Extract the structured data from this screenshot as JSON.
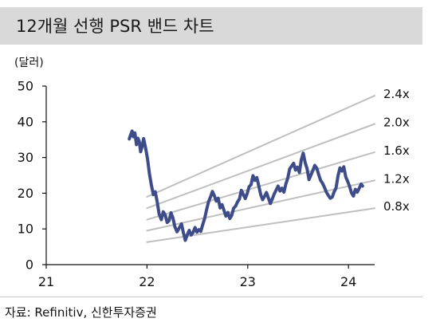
{
  "colors": {
    "title_bar": "#d9d9d9",
    "axis": "#111111",
    "price_line": "#3e4c8a",
    "band_line": "#bfbfbf"
  },
  "source": "자료: Refinitiv, 신한투자증권",
  "chart_data": {
    "type": "line",
    "title": "12개월 선행 PSR 밴드 차트",
    "ylabel": "(달러)",
    "xlim": [
      "2021-01-01",
      "2024-04-05"
    ],
    "ylim": [
      0,
      50
    ],
    "x_ticks": [
      {
        "at": "2021-01-01",
        "label": "21"
      },
      {
        "at": "2022-01-01",
        "label": "22"
      },
      {
        "at": "2023-01-01",
        "label": "23"
      },
      {
        "at": "2024-01-01",
        "label": "24"
      }
    ],
    "y_ticks": [
      0,
      10,
      20,
      30,
      40,
      50
    ],
    "grid": false,
    "legend": "right",
    "series": [
      {
        "name": "2.4x",
        "color": "#bfbfbf",
        "points": [
          [
            "2022-01-01",
            19.0
          ],
          [
            "2024-04-05",
            47.3
          ]
        ]
      },
      {
        "name": "2.0x",
        "color": "#bfbfbf",
        "points": [
          [
            "2022-01-01",
            15.8
          ],
          [
            "2024-04-05",
            39.4
          ]
        ]
      },
      {
        "name": "1.6x",
        "color": "#bfbfbf",
        "points": [
          [
            "2022-01-01",
            12.6
          ],
          [
            "2024-04-05",
            31.5
          ]
        ]
      },
      {
        "name": "1.2x",
        "color": "#bfbfbf",
        "points": [
          [
            "2022-01-01",
            9.5
          ],
          [
            "2024-04-05",
            23.6
          ]
        ]
      },
      {
        "name": "0.8x",
        "color": "#bfbfbf",
        "points": [
          [
            "2022-01-01",
            6.3
          ],
          [
            "2024-04-05",
            15.8
          ]
        ]
      },
      {
        "color": "#3e4c8a",
        "points": [
          [
            "2021-10-29",
            35.2
          ],
          [
            "2021-11-03",
            36.4
          ],
          [
            "2021-11-08",
            37.4
          ],
          [
            "2021-11-13",
            35.8
          ],
          [
            "2021-11-18",
            36.9
          ],
          [
            "2021-11-24",
            33.6
          ],
          [
            "2021-11-29",
            35.4
          ],
          [
            "2021-12-04",
            34.5
          ],
          [
            "2021-12-09",
            31.6
          ],
          [
            "2021-12-14",
            33.0
          ],
          [
            "2021-12-20",
            35.3
          ],
          [
            "2021-12-27",
            32.6
          ],
          [
            "2022-01-03",
            29.6
          ],
          [
            "2022-01-10",
            25.4
          ],
          [
            "2022-01-17",
            22.3
          ],
          [
            "2022-01-24",
            19.6
          ],
          [
            "2022-01-31",
            20.4
          ],
          [
            "2022-02-07",
            17.6
          ],
          [
            "2022-02-14",
            14.2
          ],
          [
            "2022-02-22",
            12.6
          ],
          [
            "2022-03-01",
            14.8
          ],
          [
            "2022-03-08",
            13.9
          ],
          [
            "2022-03-15",
            11.8
          ],
          [
            "2022-03-22",
            12.3
          ],
          [
            "2022-03-29",
            14.5
          ],
          [
            "2022-04-05",
            13.1
          ],
          [
            "2022-04-12",
            10.6
          ],
          [
            "2022-04-20",
            9.2
          ],
          [
            "2022-04-28",
            10.3
          ],
          [
            "2022-05-06",
            11.4
          ],
          [
            "2022-05-13",
            8.9
          ],
          [
            "2022-05-20",
            6.8
          ],
          [
            "2022-05-27",
            8.4
          ],
          [
            "2022-06-03",
            9.6
          ],
          [
            "2022-06-10",
            8.3
          ],
          [
            "2022-06-17",
            9.0
          ],
          [
            "2022-06-24",
            10.4
          ],
          [
            "2022-07-01",
            9.1
          ],
          [
            "2022-07-08",
            9.8
          ],
          [
            "2022-07-15",
            9.3
          ],
          [
            "2022-07-22",
            11.2
          ],
          [
            "2022-07-29",
            13.0
          ],
          [
            "2022-08-05",
            15.4
          ],
          [
            "2022-08-12",
            17.6
          ],
          [
            "2022-08-19",
            18.9
          ],
          [
            "2022-08-26",
            20.5
          ],
          [
            "2022-09-02",
            19.3
          ],
          [
            "2022-09-09",
            17.8
          ],
          [
            "2022-09-16",
            18.6
          ],
          [
            "2022-09-23",
            15.9
          ],
          [
            "2022-09-30",
            16.8
          ],
          [
            "2022-10-07",
            15.2
          ],
          [
            "2022-10-14",
            13.6
          ],
          [
            "2022-10-21",
            14.6
          ],
          [
            "2022-10-28",
            12.9
          ],
          [
            "2022-11-04",
            13.8
          ],
          [
            "2022-11-11",
            15.8
          ],
          [
            "2022-11-18",
            16.4
          ],
          [
            "2022-11-25",
            17.6
          ],
          [
            "2022-12-02",
            18.4
          ],
          [
            "2022-12-09",
            20.8
          ],
          [
            "2022-12-16",
            19.6
          ],
          [
            "2022-12-23",
            18.5
          ],
          [
            "2022-12-30",
            19.9
          ],
          [
            "2023-01-06",
            21.8
          ],
          [
            "2023-01-13",
            22.4
          ],
          [
            "2023-01-20",
            24.9
          ],
          [
            "2023-01-27",
            23.6
          ],
          [
            "2023-02-03",
            24.4
          ],
          [
            "2023-02-10",
            22.1
          ],
          [
            "2023-02-17",
            19.6
          ],
          [
            "2023-02-24",
            18.2
          ],
          [
            "2023-03-03",
            19.1
          ],
          [
            "2023-03-10",
            20.2
          ],
          [
            "2023-03-17",
            18.6
          ],
          [
            "2023-03-24",
            17.1
          ],
          [
            "2023-03-31",
            18.4
          ],
          [
            "2023-04-07",
            19.8
          ],
          [
            "2023-04-14",
            20.9
          ],
          [
            "2023-04-21",
            22.0
          ],
          [
            "2023-04-28",
            20.6
          ],
          [
            "2023-05-05",
            21.4
          ],
          [
            "2023-05-12",
            20.3
          ],
          [
            "2023-05-19",
            22.6
          ],
          [
            "2023-05-26",
            24.2
          ],
          [
            "2023-06-02",
            26.8
          ],
          [
            "2023-06-09",
            27.6
          ],
          [
            "2023-06-16",
            28.4
          ],
          [
            "2023-06-23",
            26.5
          ],
          [
            "2023-06-30",
            27.3
          ],
          [
            "2023-07-07",
            25.8
          ],
          [
            "2023-07-14",
            29.4
          ],
          [
            "2023-07-21",
            31.2
          ],
          [
            "2023-07-28",
            28.6
          ],
          [
            "2023-08-04",
            26.9
          ],
          [
            "2023-08-11",
            23.8
          ],
          [
            "2023-08-18",
            25.1
          ],
          [
            "2023-08-25",
            26.4
          ],
          [
            "2023-09-01",
            27.8
          ],
          [
            "2023-09-08",
            27.0
          ],
          [
            "2023-09-15",
            25.2
          ],
          [
            "2023-09-22",
            23.6
          ],
          [
            "2023-09-29",
            22.8
          ],
          [
            "2023-10-06",
            21.6
          ],
          [
            "2023-10-13",
            20.3
          ],
          [
            "2023-10-20",
            19.4
          ],
          [
            "2023-10-27",
            18.6
          ],
          [
            "2023-11-03",
            18.9
          ],
          [
            "2023-11-10",
            20.4
          ],
          [
            "2023-11-17",
            21.5
          ],
          [
            "2023-11-24",
            24.8
          ],
          [
            "2023-12-01",
            27.1
          ],
          [
            "2023-12-08",
            26.2
          ],
          [
            "2023-12-15",
            27.4
          ],
          [
            "2023-12-22",
            24.6
          ],
          [
            "2023-12-29",
            23.3
          ],
          [
            "2024-01-05",
            21.9
          ],
          [
            "2024-01-12",
            20.1
          ],
          [
            "2024-01-19",
            19.2
          ],
          [
            "2024-01-26",
            21.1
          ],
          [
            "2024-02-02",
            20.3
          ],
          [
            "2024-02-09",
            21.4
          ],
          [
            "2024-02-16",
            22.6
          ],
          [
            "2024-02-21",
            22.0
          ]
        ]
      }
    ]
  }
}
